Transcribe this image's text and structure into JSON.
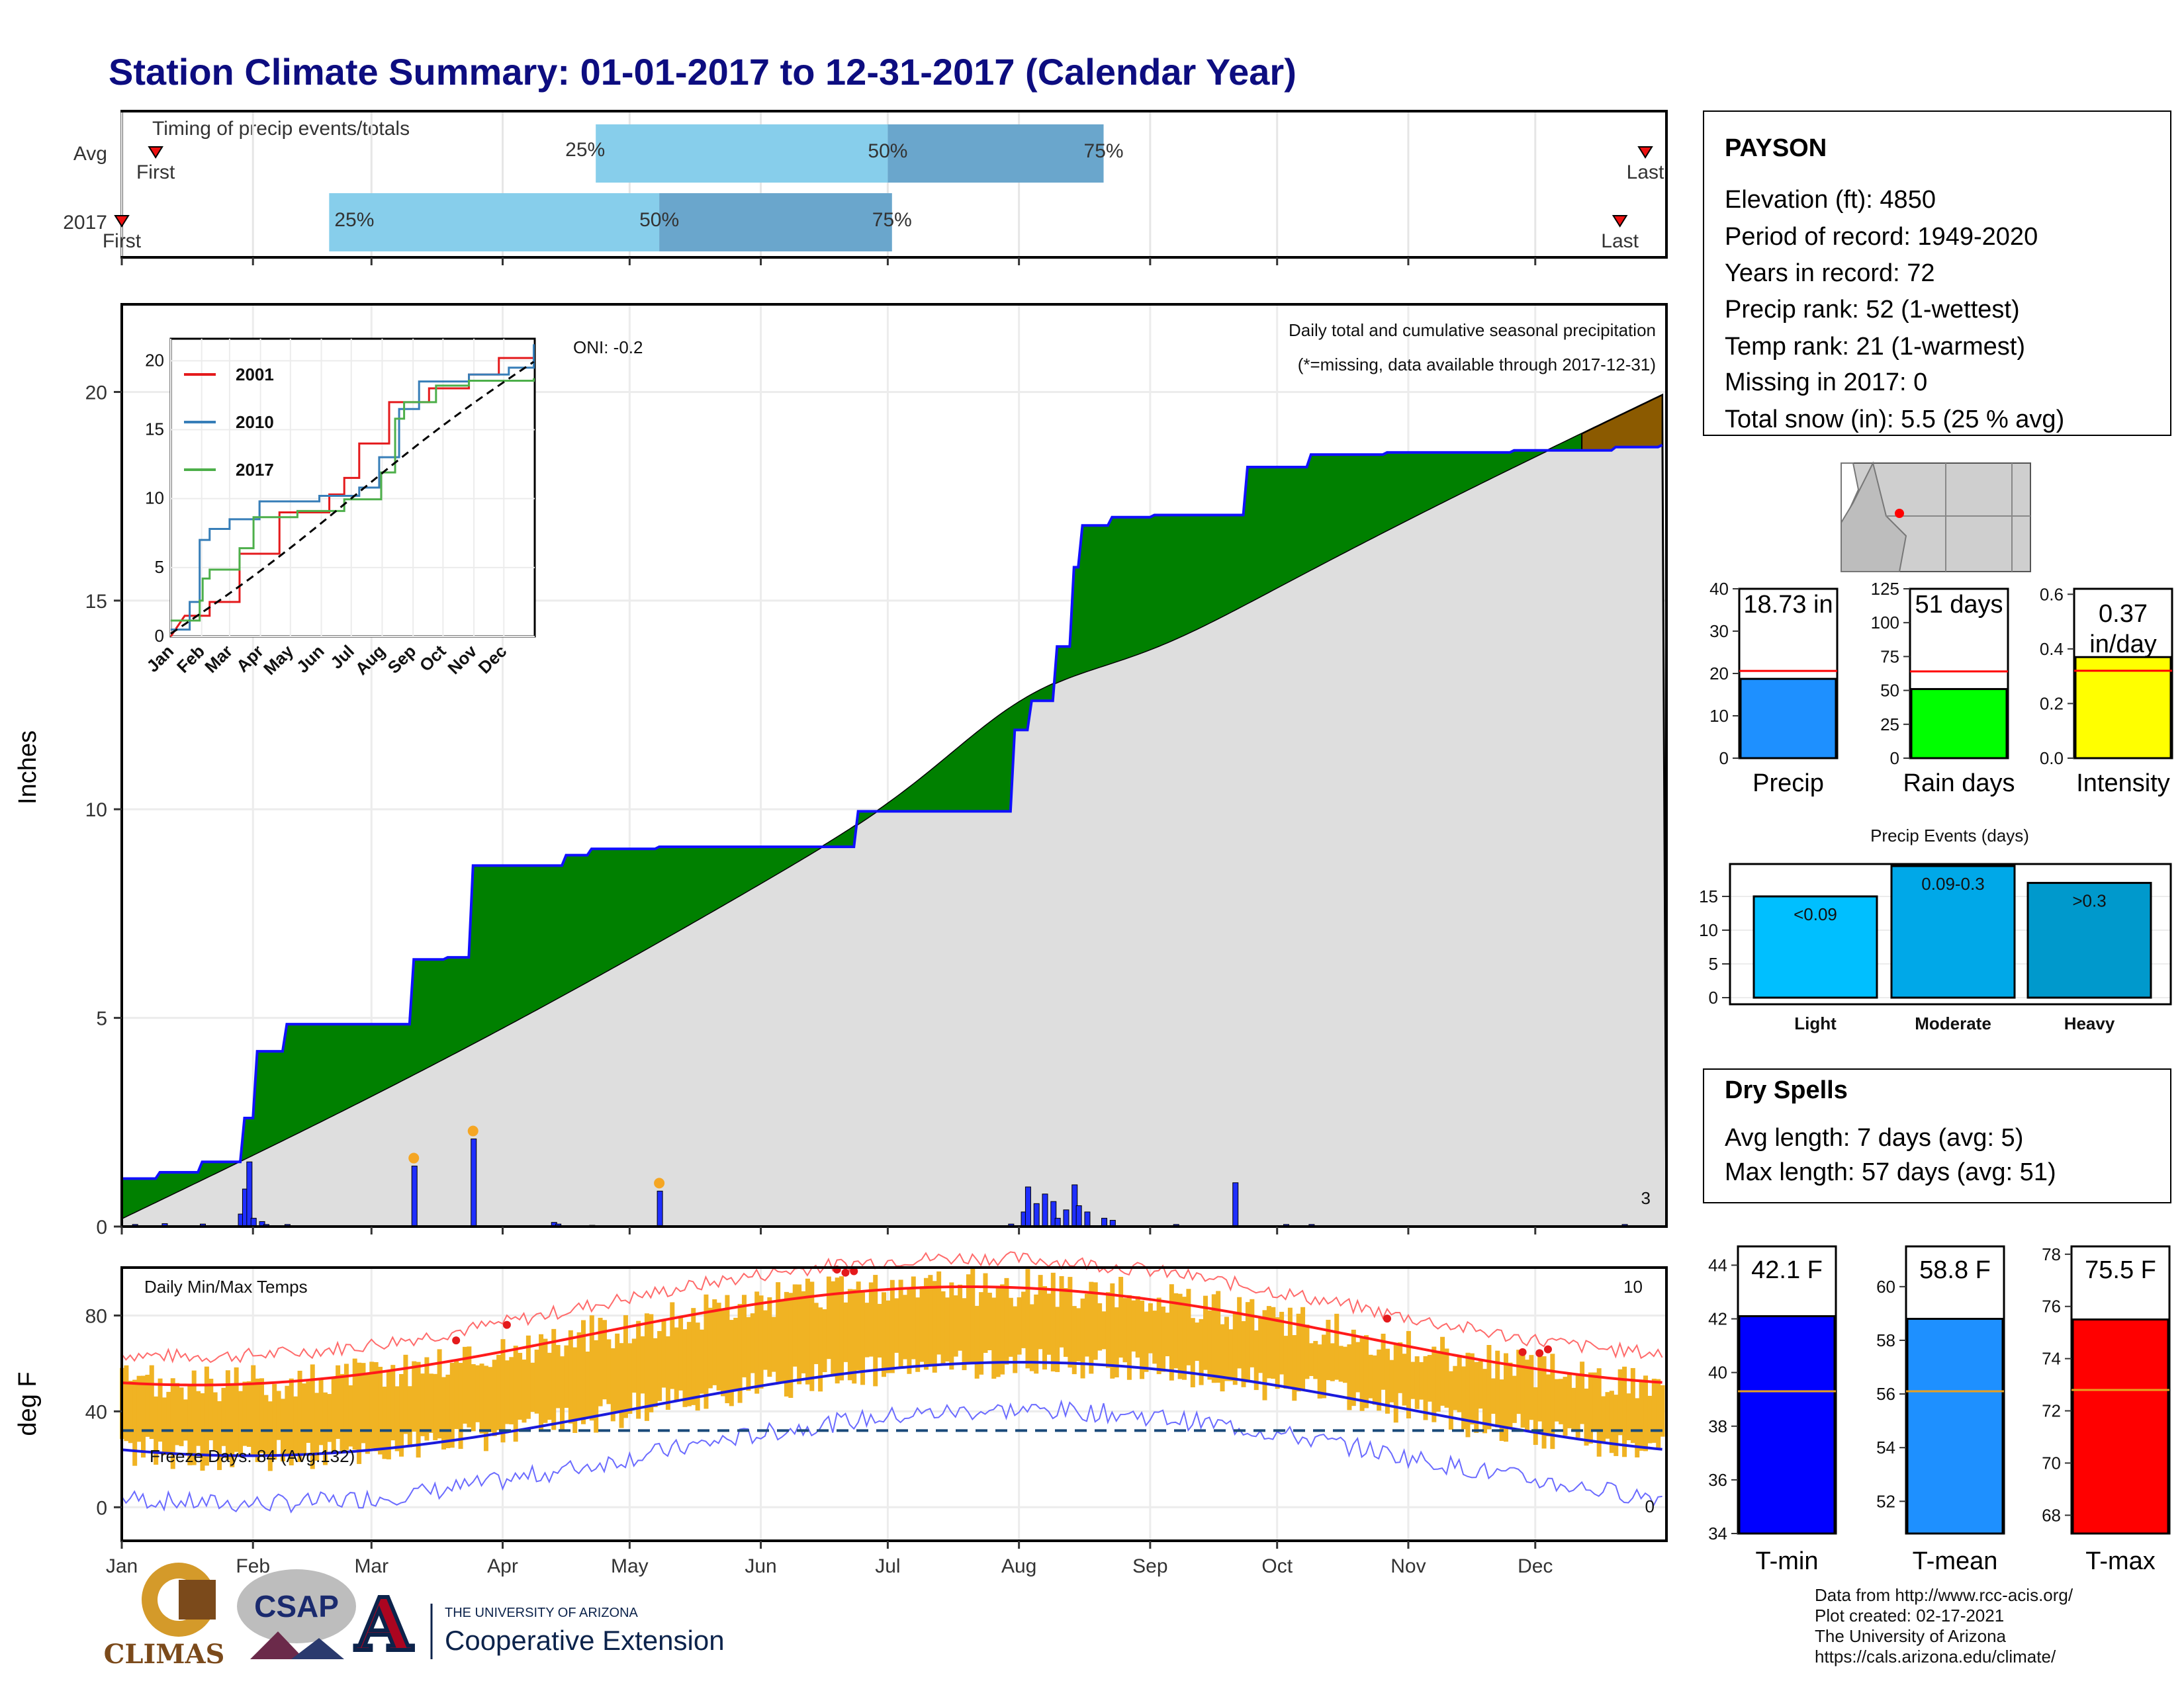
{
  "title": "Station Climate Summary: 01-01-2017 to 12-31-2017 (Calendar Year)",
  "colors": {
    "title": "#0d0d80",
    "precip_green": "#008000",
    "precip_brown": "#8b5a00",
    "normal_gray": "#dedede",
    "bar_blue": "#1f2fff",
    "temp_band": "#f0b323",
    "tmax_normal": "#ff1a1a",
    "tmin_normal": "#1a1adb",
    "light_blue": "#87ceeb",
    "mid_blue": "#6aa6cc"
  },
  "months": [
    "Jan",
    "Feb",
    "Mar",
    "Apr",
    "May",
    "Jun",
    "Jul",
    "Aug",
    "Sep",
    "Oct",
    "Nov",
    "Dec"
  ],
  "timing": {
    "label": "Timing of precip events/totals",
    "rows": [
      {
        "name": "Avg",
        "first_label": "First",
        "last_label": "Last",
        "p25_label": "25%",
        "p50_label": "50%",
        "p75_label": "75%",
        "first_day": 9,
        "p25_day": 113,
        "p50_day": 182,
        "p75_day": 233,
        "last_day": 361
      },
      {
        "name": "2017",
        "first_label": "First",
        "last_label": "Last",
        "p25_label": "25%",
        "p50_label": "50%",
        "p75_label": "75%",
        "first_day": 1,
        "p25_day": 50,
        "p50_day": 128,
        "p75_day": 183,
        "last_day": 355
      }
    ]
  },
  "precip": {
    "ylabel": "Inches",
    "caption": "Daily total and cumulative seasonal precipitation",
    "missing_note": "(*=missing, data available through 2017-12-31)",
    "oni": "ONI: -0.2",
    "count_label": "3",
    "yticks": [
      0,
      5,
      10,
      15,
      20
    ]
  },
  "inset": {
    "months": [
      "Jan",
      "Feb",
      "Mar",
      "Apr",
      "May",
      "Jun",
      "Jul",
      "Aug",
      "Sep",
      "Oct",
      "Nov",
      "Dec"
    ],
    "yticks": [
      0,
      5,
      10,
      15,
      20
    ],
    "legend": [
      {
        "name": "2001",
        "color": "#e41a1c"
      },
      {
        "name": "2010",
        "color": "#377eb8"
      },
      {
        "name": "2017",
        "color": "#4daf4a"
      }
    ]
  },
  "station": {
    "name": "PAYSON",
    "lines": [
      "Elevation (ft): 4850",
      "Period of record: 1949-2020",
      "Years in record: 72",
      "Precip rank: 52 (1-wettest)",
      "Temp rank: 21 (1-warmest)",
      "Missing in 2017: 0",
      "Total snow (in): 5.5 (25 % avg)"
    ]
  },
  "mini_bars": [
    {
      "label": "Precip",
      "value_text": "18.73 in",
      "value": 18.73,
      "normal": 20.6,
      "max": 40,
      "ticks": [
        0,
        10,
        20,
        30,
        40
      ],
      "color": "#1e90ff"
    },
    {
      "label": "Rain days",
      "value_text": "51 days",
      "value": 51,
      "normal": 64,
      "max": 125,
      "ticks": [
        0,
        25,
        50,
        75,
        100,
        125
      ],
      "color": "#00ff00"
    },
    {
      "label": "Intensity",
      "value_text": "0.37",
      "value_text2": "in/day",
      "value": 0.37,
      "normal": 0.32,
      "max": 0.62,
      "ticks": [
        "0.0",
        "0.2",
        "0.4",
        "0.6"
      ],
      "tickvals": [
        0,
        0.2,
        0.4,
        0.6
      ],
      "color": "#ffff00"
    }
  ],
  "precip_events": {
    "title": "Precip Events (days)",
    "yticks": [
      0,
      5,
      10,
      15
    ],
    "bars": [
      {
        "label": "Light",
        "range": "<0.09",
        "value": 15,
        "color": "#00bfff"
      },
      {
        "label": "Moderate",
        "range": "0.09-0.3",
        "value": 19.5,
        "color": "#00a8e8"
      },
      {
        "label": "Heavy",
        "range": ">0.3",
        "value": 17,
        "color": "#0099cc"
      }
    ]
  },
  "dry_spells": {
    "title": "Dry Spells",
    "line1": "Avg length: 7 days (avg: 5)",
    "line2": "Max length: 57 days (avg: 51)",
    "color": "#a52a2a"
  },
  "temps": {
    "label": "Daily Min/Max Temps",
    "ylabel": "deg F",
    "freeze": "Freeze Days: 84 (Avg:132)",
    "hot_count": "10",
    "cold_count": "0",
    "yticks": [
      0,
      40,
      80
    ],
    "freeze_line": 32
  },
  "temp_bars": [
    {
      "label": "T-min",
      "value_text": "42.1 F",
      "value": 42.1,
      "normal": 39.3,
      "ymin": 34,
      "ymax": 44.7,
      "ticks": [
        34,
        36,
        38,
        40,
        42,
        44
      ],
      "color": "#0000ff"
    },
    {
      "label": "T-mean",
      "value_text": "58.8 F",
      "value": 58.8,
      "normal": 56.1,
      "ymin": 50.8,
      "ymax": 61.5,
      "ticks": [
        52,
        54,
        56,
        58,
        60
      ],
      "color": "#1e90ff"
    },
    {
      "label": "T-max",
      "value_text": "75.5 F",
      "value": 75.5,
      "normal": 72.8,
      "ymin": 67.3,
      "ymax": 78.3,
      "ticks": [
        68,
        70,
        72,
        74,
        76,
        78
      ],
      "color": "#ff0000"
    }
  ],
  "credits": [
    "Data from http://www.rcc-acis.org/",
    "Plot created: 02-17-2021",
    "The University of Arizona",
    "https://cals.arizona.edu/climate/"
  ],
  "logos": {
    "climas": "CLIMAS",
    "csap": "CSAP",
    "ua_small": "THE UNIVERSITY OF ARIZONA",
    "ua_big": "Cooperative Extension",
    "ua_letter": "A"
  }
}
